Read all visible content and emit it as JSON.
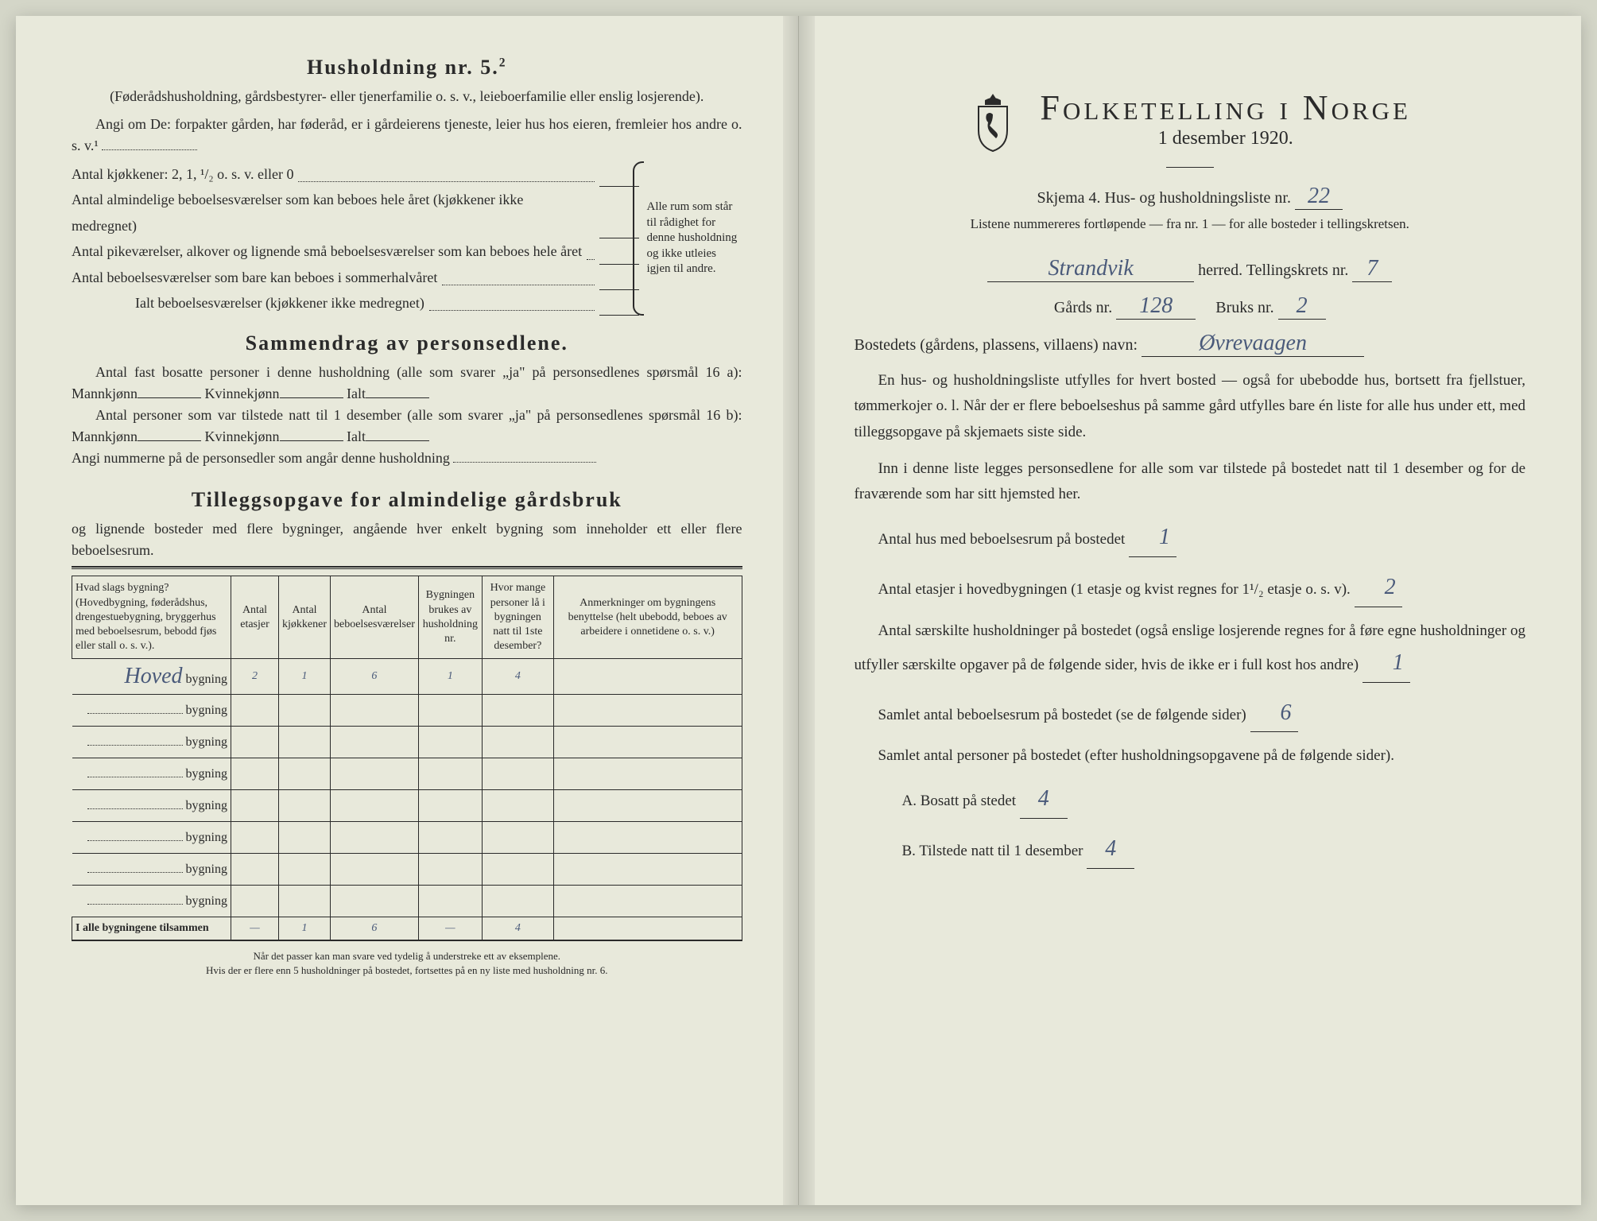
{
  "left": {
    "householdTitle": "Husholdning nr. 5.",
    "householdSup": "2",
    "householdNote": "(Føderådshusholdning, gårdsbestyrer- eller tjenerfamilie o. s. v., leieboerfamilie eller enslig losjerende).",
    "angiLine": "Angi om De: forpakter gården, har føderåd, er i gårdeierens tjeneste, leier hus hos eieren, fremleier hos andre o. s. v.¹",
    "kitchens": "Antal kjøkkener: 2, 1, ¹/₂ o. s. v. eller 0",
    "rooms1": "Antal almindelige beboelsesværelser som kan beboes hele året (kjøkkener ikke medregnet)",
    "rooms2": "Antal pikeværelser, alkover og lignende små beboelsesværelser som kan beboes hele året",
    "rooms3": "Antal beboelsesværelser som bare kan beboes i sommerhalvåret",
    "roomsTotal": "Ialt beboelsesværelser (kjøkkener ikke medregnet)",
    "braceText": "Alle rum som står til rådighet for denne husholdning og ikke utleies igjen til andre.",
    "summaryTitle": "Sammendrag av personsedlene.",
    "summary1": "Antal fast bosatte personer i denne husholdning (alle som svarer „ja\" på personsedlenes spørsmål 16 a): Mannkjønn",
    "kvinne": "Kvinnekjønn",
    "ialt": "Ialt",
    "summary2": "Antal personer som var tilstede natt til 1 desember (alle som svarer „ja\" på personsedlenes spørsmål 16 b): Mannkjønn",
    "angiNum": "Angi nummerne på de personsedler som angår denne husholdning",
    "tilleggsTitle": "Tilleggsopgave for almindelige gårdsbruk",
    "tilleggsNote": "og lignende bosteder med flere bygninger, angående hver enkelt bygning som inneholder ett eller flere beboelsesrum.",
    "table": {
      "headers": [
        "Hvad slags bygning?\n(Hovedbygning, føderådshus, drengestuebygning, bryggerhus med beboelsesrum, bebodd fjøs eller stall o. s. v.).",
        "Antal etasjer",
        "Antal kjøkkener",
        "Antal beboelsesværelser",
        "Bygningen brukes av husholdning nr.",
        "Hvor mange personer lå i bygningen natt til 1ste desember?",
        "Anmerkninger om bygningens benyttelse (helt ubebodd, beboes av arbeidere i onnetidene o. s. v.)"
      ],
      "rows": [
        {
          "label": "Hoved",
          "etasjer": "2",
          "kjokken": "1",
          "vaerelser": "6",
          "hushold": "1",
          "personer": "4",
          "anm": ""
        },
        {
          "label": "",
          "etasjer": "",
          "kjokken": "",
          "vaerelser": "",
          "hushold": "",
          "personer": "",
          "anm": ""
        },
        {
          "label": "",
          "etasjer": "",
          "kjokken": "",
          "vaerelser": "",
          "hushold": "",
          "personer": "",
          "anm": ""
        },
        {
          "label": "",
          "etasjer": "",
          "kjokken": "",
          "vaerelser": "",
          "hushold": "",
          "personer": "",
          "anm": ""
        },
        {
          "label": "",
          "etasjer": "",
          "kjokken": "",
          "vaerelser": "",
          "hushold": "",
          "personer": "",
          "anm": ""
        },
        {
          "label": "",
          "etasjer": "",
          "kjokken": "",
          "vaerelser": "",
          "hushold": "",
          "personer": "",
          "anm": ""
        },
        {
          "label": "",
          "etasjer": "",
          "kjokken": "",
          "vaerelser": "",
          "hushold": "",
          "personer": "",
          "anm": ""
        },
        {
          "label": "",
          "etasjer": "",
          "kjokken": "",
          "vaerelser": "",
          "hushold": "",
          "personer": "",
          "anm": ""
        }
      ],
      "totalLabel": "I alle bygningene tilsammen",
      "totals": {
        "etasjer": "—",
        "kjokken": "1",
        "vaerelser": "6",
        "hushold": "—",
        "personer": "4",
        "anm": ""
      }
    },
    "bygningWord": "bygning",
    "footnote": "Når det passer kan man svare ved tydelig å understreke ett av eksemplene.\nHvis der er flere enn 5 husholdninger på bostedet, fortsettes på en ny liste med husholdning nr. 6."
  },
  "right": {
    "mainTitle": "Folketelling i Norge",
    "subtitle": "1 desember 1920.",
    "skjema": "Skjema 4.  Hus- og husholdningsliste nr.",
    "listeNr": "22",
    "note": "Listene nummereres fortløpende — fra nr. 1 — for alle bosteder i tellingskretsen.",
    "herredVal": "Strandvik",
    "herredLabel": "herred.  Tellingskrets nr.",
    "kretsNr": "7",
    "gardsLabel": "Gårds nr.",
    "gardsNr": "128",
    "bruksLabel": "Bruks nr.",
    "bruksNr": "2",
    "bostedLabel": "Bostedets (gårdens, plassens, villaens) navn:",
    "bostedVal": "Øvrevaagen",
    "para1": "En hus- og husholdningsliste utfylles for hvert bosted — også for ubebodde hus, bortsett fra fjellstuer, tømmerkojer o. l.  Når der er flere beboelseshus på samme gård utfylles bare én liste for alle hus under ett, med tilleggsopgave på skjemaets siste side.",
    "para2": "Inn i denne liste legges personsedlene for alle som var tilstede på bostedet natt til 1 desember og for de fraværende som har sitt hjemsted her.",
    "q1": "Antal hus med beboelsesrum på bostedet",
    "q1v": "1",
    "q2a": "Antal etasjer i hovedbygningen (1 etasje og kvist regnes for 1¹/₂ etasje o. s. v).",
    "q2v": "2",
    "q3": "Antal særskilte husholdninger på bostedet (også enslige losjerende regnes for å føre egne husholdninger og utfyller særskilte opgaver på de følgende sider, hvis de ikke er i full kost hos andre)",
    "q3v": "1",
    "q4": "Samlet antal beboelsesrum på bostedet (se de følgende sider)",
    "q4v": "6",
    "q5": "Samlet antal personer på bostedet (efter husholdningsopgavene på de følgende sider).",
    "qA": "A.  Bosatt på stedet",
    "qAv": "4",
    "qB": "B.  Tilstede natt til 1 desember",
    "qBv": "4"
  },
  "colors": {
    "paper": "#e8e9db",
    "ink": "#2a2a2a",
    "handwriting": "#4a5a7a"
  }
}
